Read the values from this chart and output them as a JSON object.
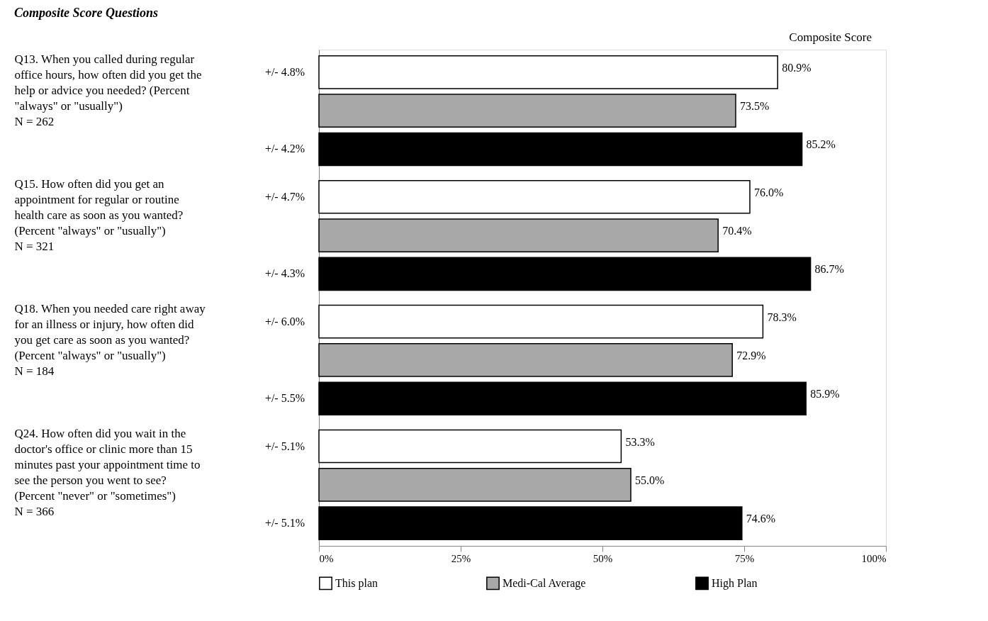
{
  "chart_data": {
    "type": "bar",
    "orientation": "horizontal",
    "title": "Composite Score Questions",
    "categories": [
      "Q13. When you called during regular\noffice hours, how often did you get the\nhelp or advice you needed? (Percent\n\"always\" or \"usually\")\n\nN = 262",
      "Q15. How often did you get an\nappointment for regular or routine\nhealth care as soon as you wanted?\n(Percent \"always\" or \"usually\")\n\nN = 321",
      "Q18. When you needed care right away\nfor an illness or injury, how often did\nyou get care as soon as you wanted?\n(Percent \"always\" or \"usually\")\n\nN = 184",
      "Q24. How often did you wait in the\ndoctor's office or clinic more than 15\nminutes past your appointment time to\nsee the person you went to see?\n(Percent \"never\" or \"sometimes\")\nN = 366"
    ],
    "series": [
      {
        "name": "This plan",
        "color": "#ffffff",
        "values": [
          80.9,
          76.0,
          78.3,
          53.3
        ],
        "value_labels": [
          "80.9%",
          "76.0%",
          "78.3%",
          "53.3%"
        ]
      },
      {
        "name": "Medi-Cal Average",
        "color": "#a8a8a8",
        "values": [
          73.5,
          70.4,
          72.9,
          55.0
        ],
        "value_labels": [
          "73.5%",
          "70.4%",
          "72.9%",
          "55.0%"
        ]
      },
      {
        "name": "High Plan",
        "color": "#000000",
        "values": [
          85.2,
          86.7,
          85.9,
          74.6
        ],
        "value_labels": [
          "85.2%",
          "86.7%",
          "85.9%",
          "74.6%"
        ]
      }
    ],
    "xlim": [
      0,
      100
    ],
    "xticks": [
      {
        "value": 0,
        "label": "0%"
      },
      {
        "value": 25,
        "label": "25%"
      },
      {
        "value": 50,
        "label": "50%"
      },
      {
        "value": 75,
        "label": "75%"
      },
      {
        "value": 100,
        "label": "100%"
      }
    ],
    "annotations": [
      "+/-  4.8%",
      "+/-  4.2%",
      "+/-  4.7%",
      "+/-  4.3%",
      "+/-  6.0%",
      "+/-  5.5%",
      "+/-  5.1%",
      "+/-  5.1%",
      "Composite Score"
    ],
    "grid": false,
    "legend": "bottom"
  }
}
